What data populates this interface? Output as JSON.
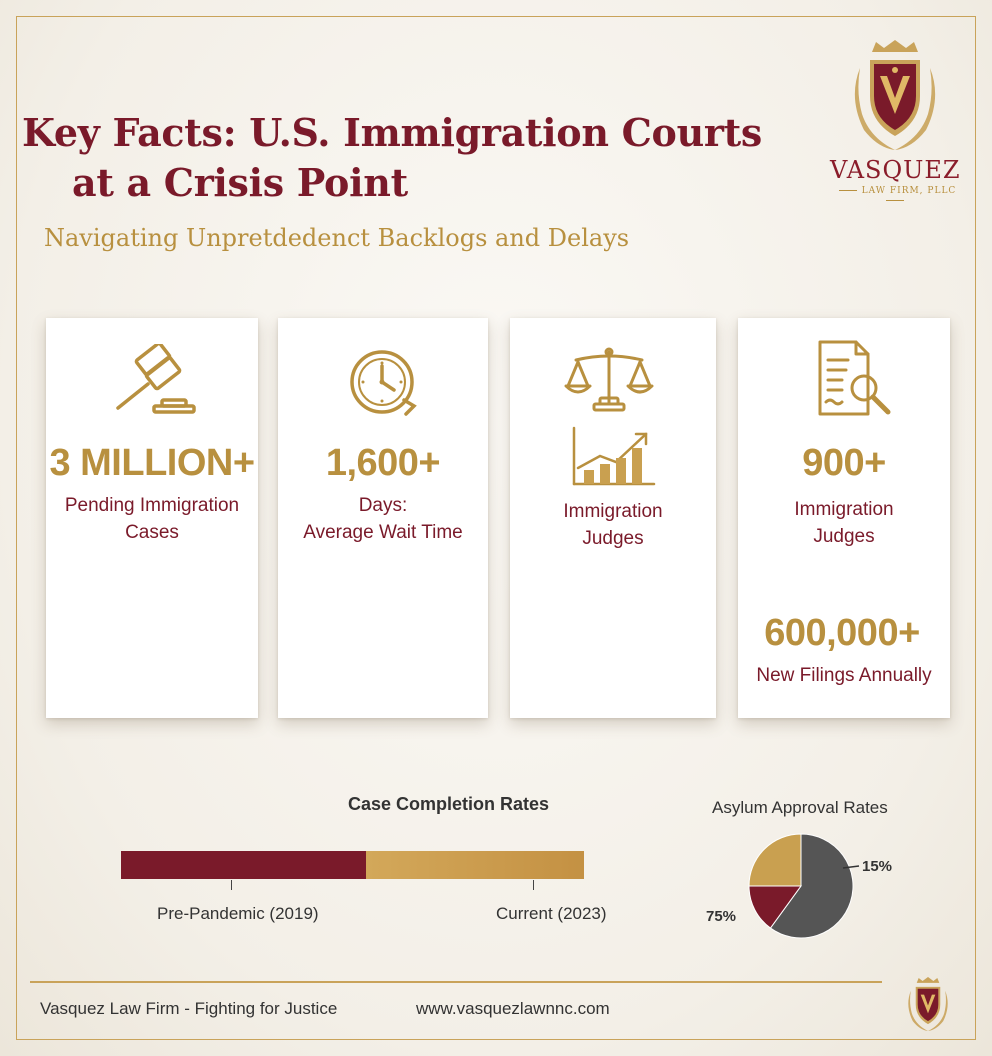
{
  "header": {
    "title_line1": "Key Facts: U.S. Immigration Courts",
    "title_line2": "at a Crisis Point",
    "subtitle": "Navigating Unpretdedenct Backlogs and Delays"
  },
  "logo": {
    "name": "VASQUEZ",
    "sub": "LAW FIRM, PLLC"
  },
  "cards": [
    {
      "icon": "gavel-icon",
      "stat": "3 MILLION+",
      "label_line1": "Pending Immigration",
      "label_line2": "Cases"
    },
    {
      "icon": "clock-icon",
      "stat": "1,600+",
      "label_line1": "Days:",
      "label_line2": "Average Wait Time"
    },
    {
      "icon": "scales-icon",
      "icon2": "growth-chart-icon",
      "label_line1": "Immigration",
      "label_line2": "Judges"
    },
    {
      "icon": "document-search-icon",
      "stat": "900+",
      "label_line1": "Immigration",
      "label_line2": "Judges",
      "stat2": "600,000+",
      "label2": "New Filings Annually"
    }
  ],
  "chart_data": [
    {
      "type": "bar",
      "title": "Case Completion Rates",
      "categories": [
        "Pre-Pandemic (2019)",
        "Current (2023)"
      ],
      "values": [
        53,
        47
      ],
      "colors": [
        "#7a1a2a",
        "#c9a050"
      ],
      "stacked": true,
      "orientation": "horizontal"
    },
    {
      "type": "pie",
      "title": "Asylum Approval Rates",
      "slices": [
        {
          "value": 60,
          "color": "#555555"
        },
        {
          "value": 15,
          "color": "#7a1a2a"
        },
        {
          "value": 25,
          "color": "#c9a050"
        }
      ],
      "annotations": [
        "15%",
        "75%"
      ]
    }
  ],
  "footer": {
    "left": "Vasquez Law Firm - Fighting for Justice",
    "url": "www.vasquezlawnnc.com"
  },
  "colors": {
    "maroon": "#7a1a2a",
    "gold": "#b8903f",
    "border": "#c9a35a"
  }
}
